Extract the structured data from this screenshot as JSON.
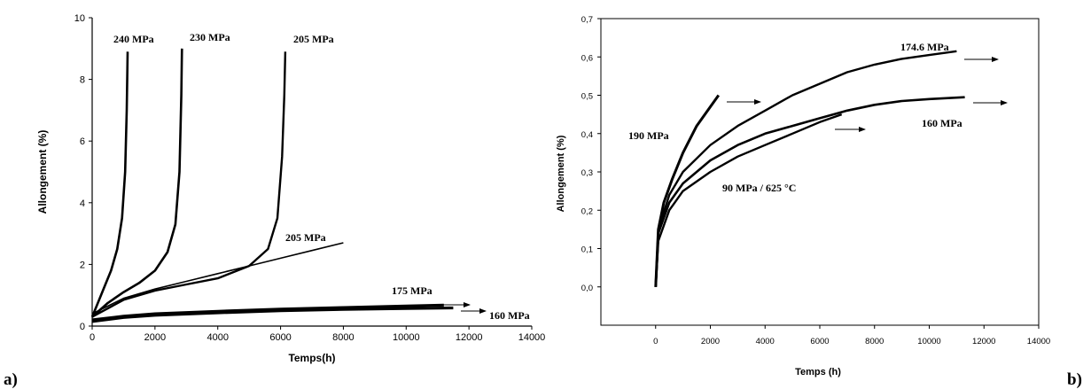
{
  "chart_data": [
    {
      "panel_label": "a)",
      "type": "line",
      "xlabel": "Temps(h)",
      "ylabel": "Allongement (%)",
      "xlim": [
        0,
        14000
      ],
      "ylim": [
        0,
        10
      ],
      "xticks": [
        0,
        2000,
        4000,
        6000,
        8000,
        10000,
        12000,
        14000
      ],
      "yticks": [
        0,
        2,
        4,
        6,
        8,
        10
      ],
      "grid": false,
      "series": [
        {
          "name": "240 MPa",
          "x": [
            0,
            200,
            400,
            600,
            800,
            950,
            1050,
            1100,
            1120,
            1130
          ],
          "y": [
            0.3,
            0.8,
            1.3,
            1.8,
            2.5,
            3.5,
            5.0,
            7.0,
            8.3,
            8.9
          ]
        },
        {
          "name": "230 MPa",
          "x": [
            0,
            500,
            1000,
            1500,
            2000,
            2400,
            2650,
            2780,
            2840,
            2860
          ],
          "y": [
            0.3,
            0.75,
            1.1,
            1.4,
            1.8,
            2.4,
            3.3,
            5.0,
            7.5,
            9.0
          ]
        },
        {
          "name": "205 MPa",
          "x": [
            0,
            1000,
            2000,
            3000,
            4000,
            5000,
            5600,
            5900,
            6050,
            6120,
            6150
          ],
          "y": [
            0.3,
            0.85,
            1.15,
            1.35,
            1.55,
            1.95,
            2.5,
            3.5,
            5.5,
            7.5,
            8.9
          ]
        },
        {
          "name": "205 MPa",
          "x": [
            0,
            1000,
            2000,
            3000,
            4000,
            5000,
            6000,
            7000,
            8000
          ],
          "y": [
            0.4,
            0.9,
            1.2,
            1.45,
            1.7,
            1.95,
            2.2,
            2.45,
            2.7
          ]
        },
        {
          "name": "175 MPa",
          "x": [
            0,
            1000,
            2000,
            4000,
            6000,
            8000,
            10000,
            11200
          ],
          "y": [
            0.2,
            0.32,
            0.4,
            0.48,
            0.55,
            0.6,
            0.65,
            0.68
          ]
        },
        {
          "name": "160 MPa",
          "x": [
            0,
            1000,
            2000,
            4000,
            6000,
            8000,
            10000,
            11500
          ],
          "y": [
            0.15,
            0.28,
            0.35,
            0.43,
            0.5,
            0.54,
            0.57,
            0.59
          ]
        }
      ],
      "annotations": [
        "240 MPa",
        "230 MPa",
        "205 MPa",
        "205 MPa",
        "175 MPa",
        "160 MPa"
      ]
    },
    {
      "panel_label": "b)",
      "type": "line",
      "xlabel": "Temps (h)",
      "ylabel": "Allongement (%)",
      "xlim": [
        -2000,
        14000
      ],
      "ylim": [
        -0.1,
        0.7
      ],
      "xticks": [
        0,
        2000,
        4000,
        6000,
        8000,
        10000,
        12000,
        14000
      ],
      "yticks": [
        "0,0",
        "0,1",
        "0,2",
        "0,3",
        "0,4",
        "0,5",
        "0,6",
        "0,7"
      ],
      "grid": false,
      "series": [
        {
          "name": "190 MPa",
          "x": [
            0,
            100,
            300,
            600,
            1000,
            1500,
            2000,
            2300
          ],
          "y": [
            0.0,
            0.15,
            0.22,
            0.28,
            0.35,
            0.42,
            0.47,
            0.5
          ]
        },
        {
          "name": "174.6 MPa",
          "x": [
            0,
            100,
            500,
            1000,
            2000,
            3000,
            4000,
            5000,
            6000,
            7000,
            8000,
            9000,
            10000,
            11000
          ],
          "y": [
            0.0,
            0.15,
            0.24,
            0.3,
            0.37,
            0.42,
            0.46,
            0.5,
            0.53,
            0.56,
            0.58,
            0.595,
            0.605,
            0.615
          ]
        },
        {
          "name": "160 MPa",
          "x": [
            0,
            100,
            500,
            1000,
            2000,
            3000,
            4000,
            5000,
            6000,
            7000,
            8000,
            9000,
            10000,
            11300
          ],
          "y": [
            0.0,
            0.14,
            0.22,
            0.27,
            0.33,
            0.37,
            0.4,
            0.42,
            0.44,
            0.46,
            0.475,
            0.485,
            0.49,
            0.495
          ]
        },
        {
          "name": "90 MPa / 625 °C",
          "x": [
            0,
            100,
            500,
            1000,
            2000,
            3000,
            4000,
            5000,
            6000,
            6800
          ],
          "y": [
            0.0,
            0.12,
            0.2,
            0.25,
            0.3,
            0.34,
            0.37,
            0.4,
            0.43,
            0.45
          ]
        }
      ],
      "annotations": [
        "190 MPa",
        "174.6 MPa",
        "160 MPa",
        "90 MPa / 625 °C"
      ]
    }
  ]
}
